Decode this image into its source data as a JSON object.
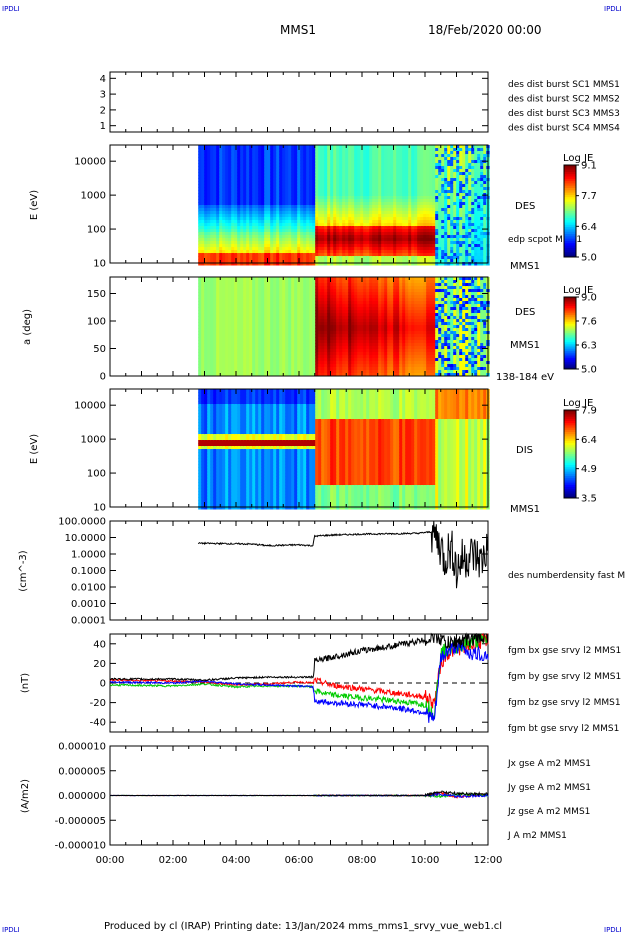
{
  "corner_labels": [
    "IPDLI",
    "IPDLI",
    "IPDLI",
    "IPDLI"
  ],
  "header": {
    "spacecraft": "MMS1",
    "date": "18/Feb/2020 00:00"
  },
  "footer": "Produced by cl (IRAP)   Printing date: 13/Jan/2024   mms_mms1_srvy_vue_web1.cl",
  "colors": {
    "blue": "#0000ff",
    "magenta": "#dd00dd",
    "red": "#ff0000",
    "green": "#00cc00",
    "black": "#000000"
  },
  "chart_data": [
    {
      "type": "scatter",
      "panel": "availability",
      "yticks": [
        "1",
        "2",
        "3",
        "4"
      ],
      "ylim": [
        0.6,
        4.4
      ],
      "legend": [
        {
          "text": "des dist burst SC1 MMS1",
          "color": "#0000ff"
        },
        {
          "text": "des dist burst SC2 MMS2",
          "color": "#dd00dd"
        },
        {
          "text": "des dist burst SC3 MMS3",
          "color": "#ff0000"
        },
        {
          "text": "des dist burst SC4 MMS4",
          "color": "#00cc00"
        }
      ]
    },
    {
      "type": "heatmap",
      "panel": "des-energy",
      "ylabel": "E (eV)",
      "yticks": [
        "10",
        "100",
        "1000",
        "10000"
      ],
      "ylim": [
        10,
        30000
      ],
      "scale": "log",
      "data_start_hour": 2.8,
      "side_labels": [
        "DES",
        "edp scpot MMS1",
        "MMS1"
      ],
      "colorbar": {
        "title": "Log JE",
        "ticks": [
          "9.1",
          "7.7",
          "6.4",
          "5.0"
        ],
        "range": [
          5.0,
          9.1
        ]
      }
    },
    {
      "type": "heatmap",
      "panel": "des-pitch",
      "ylabel": "a (deg)",
      "yticks": [
        "0",
        "50",
        "100",
        "150"
      ],
      "ylim": [
        0,
        180
      ],
      "data_start_hour": 2.8,
      "side_labels": [
        "DES",
        "MMS1",
        "138-184 eV"
      ],
      "colorbar": {
        "title": "Log JE",
        "ticks": [
          "9.0",
          "7.6",
          "6.3",
          "5.0"
        ],
        "range": [
          5.0,
          9.0
        ]
      }
    },
    {
      "type": "heatmap",
      "panel": "dis-energy",
      "ylabel": "E (eV)",
      "yticks": [
        "10",
        "100",
        "1000",
        "10000"
      ],
      "ylim": [
        10,
        30000
      ],
      "scale": "log",
      "data_start_hour": 2.8,
      "side_labels": [
        "DIS",
        "MMS1"
      ],
      "colorbar": {
        "title": "Log JE",
        "ticks": [
          "7.9",
          "6.4",
          "4.9",
          "3.5"
        ],
        "range": [
          3.5,
          7.9
        ]
      }
    },
    {
      "type": "line",
      "panel": "density",
      "ylabel": "(cm^-3)",
      "yticks": [
        "100.0000",
        "10.0000",
        "1.0000",
        "0.1000",
        "0.0100",
        "0.0010",
        "0.0001"
      ],
      "ylim": [
        0.0001,
        100
      ],
      "scale": "log",
      "series": [
        {
          "name": "des numberdensity fast M",
          "color": "#000000",
          "x": [
            2.8,
            3.5,
            4.5,
            5.0,
            6.0,
            6.45,
            6.5,
            7.0,
            8.0,
            9.0,
            9.8,
            10.2,
            10.4,
            10.6,
            10.8,
            11.0,
            11.2,
            11.5,
            11.8,
            12.0
          ],
          "y": [
            4.5,
            4.3,
            4.0,
            3.2,
            3.6,
            3.2,
            12,
            14,
            16,
            17,
            18,
            22,
            6,
            0.3,
            2,
            0.05,
            0.5,
            1,
            0.3,
            2
          ]
        }
      ]
    },
    {
      "type": "line",
      "panel": "magnetic-field",
      "ylabel": "(nT)",
      "yticks": [
        "40",
        "20",
        "0",
        "-20",
        "-40"
      ],
      "ylim": [
        -50,
        50
      ],
      "series": [
        {
          "name": "fgm bx gse srvy l2 MMS1",
          "color": "#ff0000",
          "x": [
            0,
            2,
            3,
            4,
            5,
            6,
            6.45,
            6.5,
            7,
            8,
            9,
            10,
            10.3,
            10.5,
            10.7,
            11,
            11.5,
            12
          ],
          "y": [
            3,
            2,
            1,
            -2,
            -1,
            1,
            0,
            3,
            -2,
            -6,
            -10,
            -14,
            -20,
            20,
            30,
            35,
            38,
            45
          ]
        },
        {
          "name": "fgm by gse srvy l2 MMS1",
          "color": "#00cc00",
          "x": [
            0,
            2,
            3,
            4,
            5,
            6,
            6.45,
            6.5,
            7,
            8,
            9,
            10,
            10.3,
            10.5,
            10.7,
            11,
            11.5,
            12
          ],
          "y": [
            -2,
            -3,
            -1,
            -4,
            -3,
            -3,
            -4,
            -8,
            -12,
            -15,
            -18,
            -22,
            -30,
            30,
            35,
            37,
            42,
            45
          ]
        },
        {
          "name": "fgm bz gse srvy l2 MMS1",
          "color": "#0000ff",
          "x": [
            0,
            2,
            3,
            4,
            5,
            6,
            6.45,
            6.5,
            7,
            8,
            9,
            10,
            10.3,
            10.5,
            10.7,
            11,
            11.5,
            12
          ],
          "y": [
            1,
            0,
            2,
            -1,
            -2,
            -3,
            -4,
            -18,
            -20,
            -22,
            -25,
            -30,
            -38,
            25,
            32,
            38,
            30,
            28
          ]
        },
        {
          "name": "fgm bt gse srvy l2 MMS1",
          "color": "#000000",
          "x": [
            0,
            2,
            3,
            4,
            5,
            6,
            6.45,
            6.5,
            7,
            8,
            9,
            10,
            10.3,
            10.5,
            10.7,
            11,
            11.5,
            12
          ],
          "y": [
            4,
            4,
            3,
            5,
            6,
            6,
            6,
            22,
            26,
            33,
            38,
            44,
            48,
            45,
            40,
            42,
            45,
            48
          ]
        }
      ]
    },
    {
      "type": "line",
      "panel": "current",
      "ylabel": "(A/m2)",
      "yticks": [
        "0.000010",
        "0.000005",
        "0.000000",
        "-0.000005",
        "-0.000010"
      ],
      "ylim": [
        -1e-05,
        1e-05
      ],
      "series": [
        {
          "name": "Jx gse A m2 MMS1",
          "color": "#ff0000",
          "x": [
            0,
            10,
            10.5,
            11,
            12
          ],
          "y": [
            0,
            0,
            5e-07,
            -3e-07,
            2e-07
          ]
        },
        {
          "name": "Jy gse A m2 MMS1",
          "color": "#00cc00",
          "x": [
            0,
            10,
            10.5,
            11,
            12
          ],
          "y": [
            0,
            0,
            -2e-07,
            3e-07,
            0
          ]
        },
        {
          "name": "Jz gse A m2 MMS1",
          "color": "#0000ff",
          "x": [
            0,
            10,
            10.5,
            11,
            12
          ],
          "y": [
            0,
            0,
            3e-07,
            -2e-07,
            0
          ]
        },
        {
          "name": "J A m2 MMS1",
          "color": "#000000",
          "x": [
            0,
            10,
            10.5,
            11,
            12
          ],
          "y": [
            0,
            0,
            8e-07,
            4e-07,
            3e-07
          ]
        }
      ]
    }
  ],
  "xaxis": {
    "ticks": [
      "00:00",
      "02:00",
      "04:00",
      "06:00",
      "08:00",
      "10:00",
      "12:00"
    ],
    "range_hours": [
      0,
      12
    ]
  }
}
